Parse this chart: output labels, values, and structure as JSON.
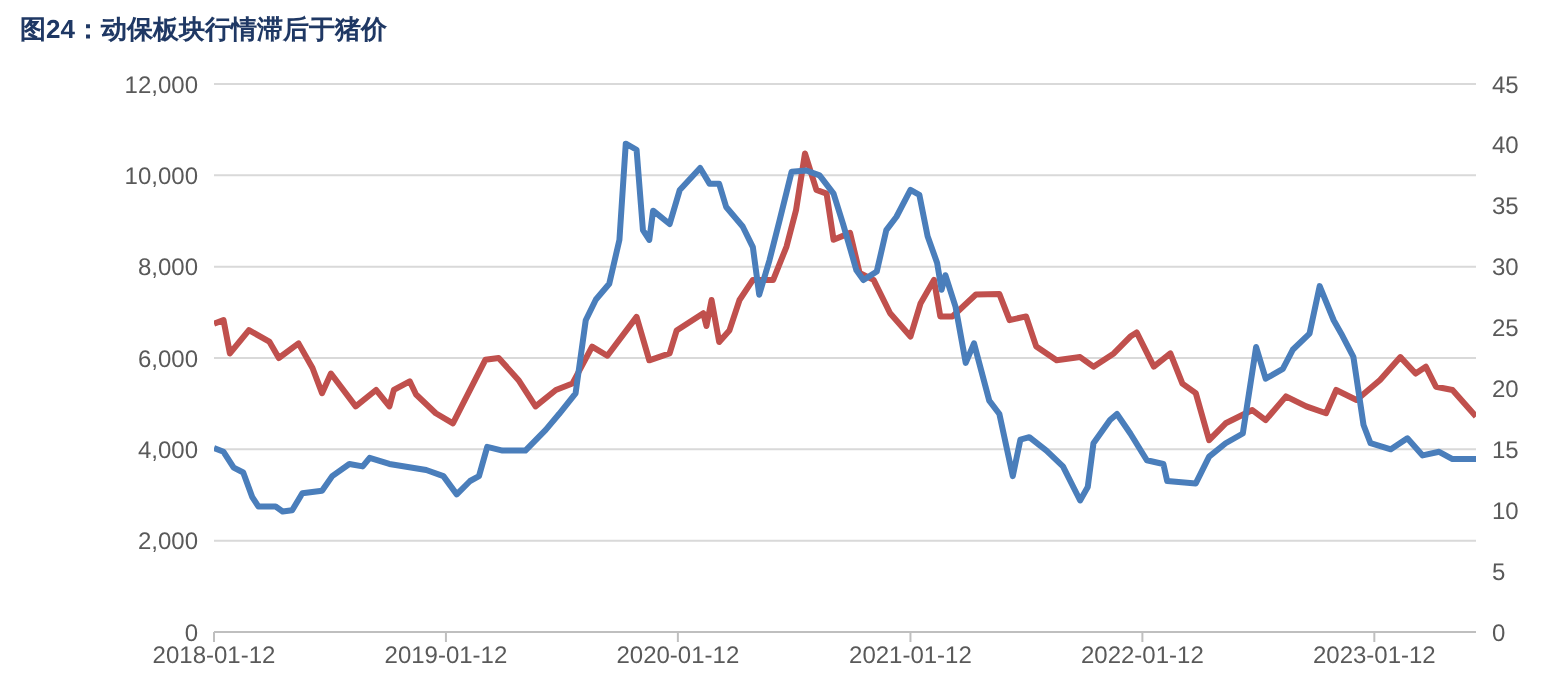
{
  "chart_data": {
    "type": "line",
    "title": "图24：动保板块行情滞后于猪价",
    "grid": "y",
    "xlim": [
      "2018-01-12",
      "2023-06-21"
    ],
    "xticks": [
      "2018-01-12",
      "2019-01-12",
      "2020-01-12",
      "2021-01-12",
      "2022-01-12",
      "2023-01-12"
    ],
    "ylim": [
      0,
      12000
    ],
    "yticks": [
      0,
      {
        "value": 2000,
        "label": "2,000"
      },
      {
        "value": 4000,
        "label": "4,000"
      },
      {
        "value": 6000,
        "label": "6,000"
      },
      {
        "value": 8000,
        "label": "8,000"
      },
      {
        "value": 10000,
        "label": "10,000"
      },
      {
        "value": 12000,
        "label": "12,000"
      }
    ],
    "y2lim": [
      0,
      45
    ],
    "y2ticks": [
      0,
      5,
      10,
      15,
      20,
      25,
      30,
      35,
      40,
      45
    ],
    "series": [
      {
        "color": "#c0504d",
        "x": [
          "2018-01-12",
          "2018-01-27",
          "2018-02-06",
          "2018-03-08",
          "2018-04-09",
          "2018-04-24",
          "2018-05-25",
          "2018-06-16",
          "2018-07-01",
          "2018-07-15",
          "2018-08-23",
          "2018-09-24",
          "2018-10-15",
          "2018-10-22",
          "2018-11-16",
          "2018-11-26",
          "2018-12-27",
          "2019-01-23",
          "2019-03-15",
          "2019-04-05",
          "2019-05-06",
          "2019-06-02",
          "2019-07-04",
          "2019-07-30",
          "2019-08-30",
          "2019-09-23",
          "2019-11-08",
          "2019-11-28",
          "2019-12-30",
          "2020-01-10",
          "2020-02-21",
          "2020-02-26",
          "2020-03-05",
          "2020-03-17",
          "2020-04-02",
          "2020-04-18",
          "2020-05-09",
          "2020-06-10",
          "2020-07-01",
          "2020-07-16",
          "2020-07-30",
          "2020-08-17",
          "2020-09-02",
          "2020-09-13",
          "2020-10-09",
          "2020-10-24",
          "2020-11-15",
          "2020-12-11",
          "2021-01-12",
          "2021-01-28",
          "2021-02-18",
          "2021-02-28",
          "2021-03-19",
          "2021-04-25",
          "2021-06-01",
          "2021-06-17",
          "2021-07-13",
          "2021-07-29",
          "2021-08-30",
          "2021-10-06",
          "2021-10-27",
          "2021-11-28",
          "2021-12-24",
          "2022-01-03",
          "2022-01-30",
          "2022-02-25",
          "2022-03-16",
          "2022-04-06",
          "2022-04-27",
          "2022-05-23",
          "2022-07-04",
          "2022-07-25",
          "2022-08-26",
          "2022-09-27",
          "2022-10-28",
          "2022-11-13",
          "2022-12-15",
          "2023-01-21",
          "2023-02-22",
          "2023-03-18",
          "2023-04-03",
          "2023-04-19",
          "2023-05-15",
          "2023-06-21"
        ],
        "values": [
          6750,
          6830,
          6100,
          6610,
          6360,
          6000,
          6320,
          5780,
          5230,
          5660,
          4940,
          5300,
          4940,
          5300,
          5490,
          5200,
          4790,
          4570,
          5960,
          6000,
          5520,
          4940,
          5300,
          5440,
          6250,
          6050,
          6900,
          5950,
          6100,
          6600,
          6980,
          6700,
          7270,
          6350,
          6600,
          7270,
          7710,
          7710,
          8440,
          9240,
          10480,
          9680,
          9600,
          8590,
          8740,
          7860,
          7710,
          6980,
          6470,
          7200,
          7710,
          6910,
          6910,
          7390,
          7400,
          6830,
          6910,
          6250,
          5950,
          6020,
          5810,
          6100,
          6470,
          6560,
          5810,
          6100,
          5440,
          5230,
          4200,
          4570,
          4860,
          4640,
          5160,
          4940,
          4790,
          5300,
          5080,
          5520,
          6020,
          5660,
          5810,
          5370,
          5300,
          4720
        ]
      },
      {
        "color": "#4a7ebb",
        "axis": "y2",
        "x": [
          "2018-01-12",
          "2018-01-27",
          "2018-02-12",
          "2018-02-27",
          "2018-03-13",
          "2018-03-23",
          "2018-04-19",
          "2018-04-30",
          "2018-05-15",
          "2018-05-31",
          "2018-07-01",
          "2018-07-17",
          "2018-08-13",
          "2018-09-03",
          "2018-09-14",
          "2018-10-15",
          "2018-12-12",
          "2019-01-08",
          "2019-01-29",
          "2019-02-19",
          "2019-03-05",
          "2019-03-18",
          "2019-04-11",
          "2019-05-17",
          "2019-06-18",
          "2019-07-09",
          "2019-08-04",
          "2019-08-20",
          "2019-09-05",
          "2019-09-26",
          "2019-10-12",
          "2019-10-22",
          "2019-11-08",
          "2019-11-18",
          "2019-11-28",
          "2019-12-04",
          "2019-12-30",
          "2020-01-15",
          "2020-02-16",
          "2020-03-02",
          "2020-03-17",
          "2020-03-28",
          "2020-04-23",
          "2020-05-09",
          "2020-05-19",
          "2020-06-04",
          "2020-06-20",
          "2020-07-09",
          "2020-08-01",
          "2020-08-22",
          "2020-09-13",
          "2020-09-28",
          "2020-10-19",
          "2020-10-30",
          "2020-11-20",
          "2020-12-05",
          "2020-12-21",
          "2021-01-12",
          "2021-01-26",
          "2021-02-08",
          "2021-02-23",
          "2021-03-02",
          "2021-03-08",
          "2021-03-24",
          "2021-04-09",
          "2021-04-22",
          "2021-05-16",
          "2021-06-01",
          "2021-06-22",
          "2021-07-04",
          "2021-07-18",
          "2021-08-14",
          "2021-09-09",
          "2021-10-06",
          "2021-10-18",
          "2021-10-27",
          "2021-11-22",
          "2021-12-03",
          "2021-12-24",
          "2022-01-19",
          "2022-02-14",
          "2022-02-20",
          "2022-04-06",
          "2022-04-27",
          "2022-05-23",
          "2022-06-19",
          "2022-07-10",
          "2022-07-25",
          "2022-08-21",
          "2022-09-06",
          "2022-10-02",
          "2022-10-18",
          "2022-11-09",
          "2022-11-21",
          "2022-12-10",
          "2022-12-26",
          "2023-01-06",
          "2023-02-07",
          "2023-03-05",
          "2023-03-29",
          "2023-04-24",
          "2023-05-15",
          "2023-06-21"
        ],
        "values": [
          15.1,
          14.8,
          13.5,
          13.1,
          11.1,
          10.3,
          10.3,
          9.9,
          10.0,
          11.4,
          11.6,
          12.8,
          13.8,
          13.6,
          14.3,
          13.8,
          13.3,
          12.8,
          11.3,
          12.4,
          12.8,
          15.2,
          14.9,
          14.9,
          16.6,
          17.9,
          19.6,
          25.6,
          27.3,
          28.6,
          32.2,
          40.1,
          39.6,
          33.0,
          32.2,
          34.6,
          33.5,
          36.3,
          38.1,
          36.8,
          36.8,
          34.9,
          33.3,
          31.6,
          27.7,
          30.5,
          33.8,
          37.8,
          37.9,
          37.5,
          36.0,
          33.5,
          29.7,
          28.9,
          29.6,
          33.0,
          34.1,
          36.3,
          35.9,
          32.5,
          30.3,
          28.1,
          29.3,
          26.7,
          22.1,
          23.7,
          19.0,
          17.9,
          12.8,
          15.8,
          16.0,
          14.9,
          13.6,
          10.8,
          11.9,
          15.5,
          17.4,
          17.9,
          16.3,
          14.1,
          13.8,
          12.4,
          12.2,
          14.4,
          15.5,
          16.3,
          23.4,
          20.8,
          21.6,
          23.2,
          24.5,
          28.4,
          25.6,
          24.5,
          22.6,
          17.0,
          15.5,
          15.0,
          15.9,
          14.5,
          14.8,
          14.2,
          14.2
        ]
      }
    ]
  }
}
